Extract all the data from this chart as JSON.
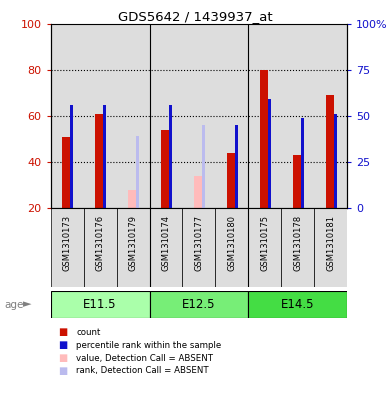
{
  "title": "GDS5642 / 1439937_at",
  "samples": [
    "GSM1310173",
    "GSM1310176",
    "GSM1310179",
    "GSM1310174",
    "GSM1310177",
    "GSM1310180",
    "GSM1310175",
    "GSM1310178",
    "GSM1310181"
  ],
  "count_values": [
    51,
    61,
    null,
    54,
    null,
    44,
    80,
    43,
    69
  ],
  "rank_values": [
    56,
    56,
    null,
    56,
    null,
    45,
    59,
    49,
    51
  ],
  "absent_count_values": [
    null,
    null,
    28,
    null,
    34,
    null,
    null,
    null,
    null
  ],
  "absent_rank_values": [
    null,
    null,
    39,
    null,
    45,
    null,
    null,
    null,
    null
  ],
  "age_groups": [
    {
      "label": "E11.5",
      "start": 0,
      "end": 3
    },
    {
      "label": "E12.5",
      "start": 3,
      "end": 6
    },
    {
      "label": "E14.5",
      "start": 6,
      "end": 9
    }
  ],
  "age_colors": [
    "#AAFFAA",
    "#77EE77",
    "#44DD44"
  ],
  "ylim_left": [
    20,
    100
  ],
  "yticks_left": [
    20,
    40,
    60,
    80,
    100
  ],
  "ytick_labels_left": [
    "20",
    "40",
    "60",
    "80",
    "100"
  ],
  "ylim_right": [
    0,
    100
  ],
  "yticks_right": [
    0,
    25,
    50,
    75,
    100
  ],
  "ytick_labels_right": [
    "0",
    "25",
    "50",
    "75",
    "100%"
  ],
  "color_red": "#CC1100",
  "color_blue": "#1111CC",
  "color_pink": "#FFBBBB",
  "color_lightblue": "#BBBBEE",
  "bg_color": "#DDDDDD",
  "bar_width": 0.25,
  "marker_size": 0.1
}
